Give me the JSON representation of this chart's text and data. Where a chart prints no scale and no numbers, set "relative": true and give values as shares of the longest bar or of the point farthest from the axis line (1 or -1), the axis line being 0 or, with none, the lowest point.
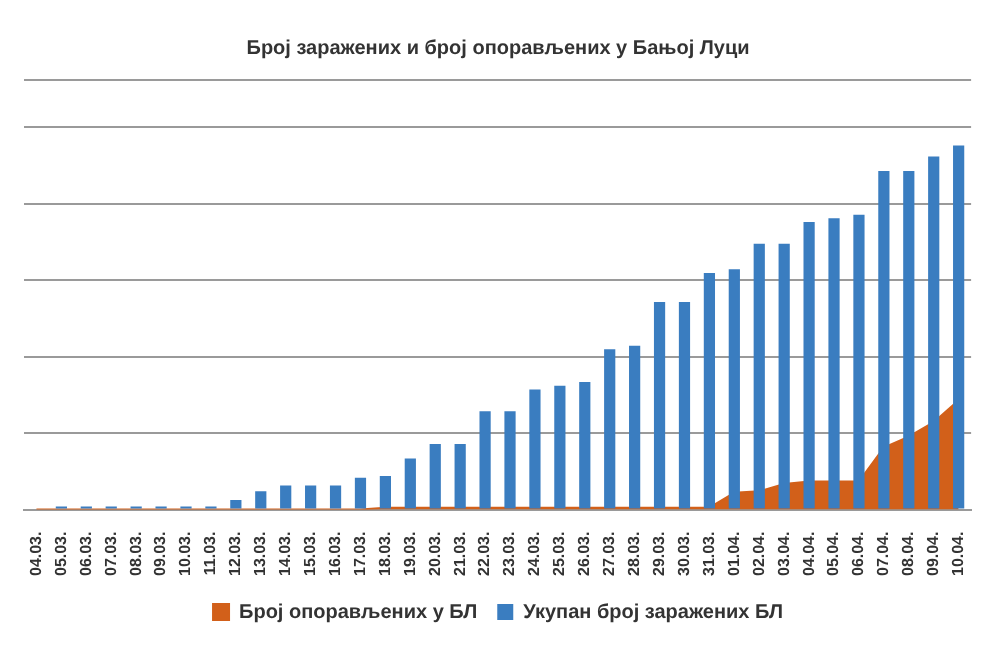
{
  "chart_data": {
    "type": "bar",
    "title": "Број заражених и број опорављених у Бањој Луци",
    "relative": true,
    "grid": "y",
    "legend": "bottom",
    "categories": [
      "04.03.",
      "05.03.",
      "06.03.",
      "07.03.",
      "08.03.",
      "09.03.",
      "10.03.",
      "11.03.",
      "12.03.",
      "13.03.",
      "14.03.",
      "15.03.",
      "16.03.",
      "17.03.",
      "18.03.",
      "19.03.",
      "20.03.",
      "21.03.",
      "22.03.",
      "23.03.",
      "24.03.",
      "25.03.",
      "26.03.",
      "27.03.",
      "28.03.",
      "29.03.",
      "30.03.",
      "31.03.",
      "01.04.",
      "02.04.",
      "03.04.",
      "04.04.",
      "05.04.",
      "06.04.",
      "07.04.",
      "08.04.",
      "09.04.",
      "10.04."
    ],
    "series": [
      {
        "name": "Број опорављених у БЛ",
        "type": "area",
        "color": "#d2601a",
        "values": [
          0,
          0,
          0,
          0,
          0,
          0,
          0,
          0,
          0,
          0,
          0,
          0,
          0,
          0,
          0.005,
          0.005,
          0.005,
          0.005,
          0.005,
          0.005,
          0.005,
          0.005,
          0.005,
          0.005,
          0.005,
          0.005,
          0.005,
          0.005,
          0.046,
          0.05,
          0.07,
          0.077,
          0.077,
          0.077,
          0.17,
          0.2,
          0.24,
          0.3
        ]
      },
      {
        "name": "Укупан број заражених БЛ",
        "color": "#3a7dc0",
        "values": [
          0,
          0.008,
          0.008,
          0.008,
          0.008,
          0.008,
          0.008,
          0.008,
          0.026,
          0.05,
          0.066,
          0.066,
          0.066,
          0.087,
          0.092,
          0.14,
          0.18,
          0.18,
          0.27,
          0.27,
          0.33,
          0.34,
          0.35,
          0.44,
          0.45,
          0.57,
          0.57,
          0.65,
          0.66,
          0.73,
          0.73,
          0.79,
          0.8,
          0.81,
          0.93,
          0.93,
          0.97,
          1
        ]
      }
    ]
  }
}
